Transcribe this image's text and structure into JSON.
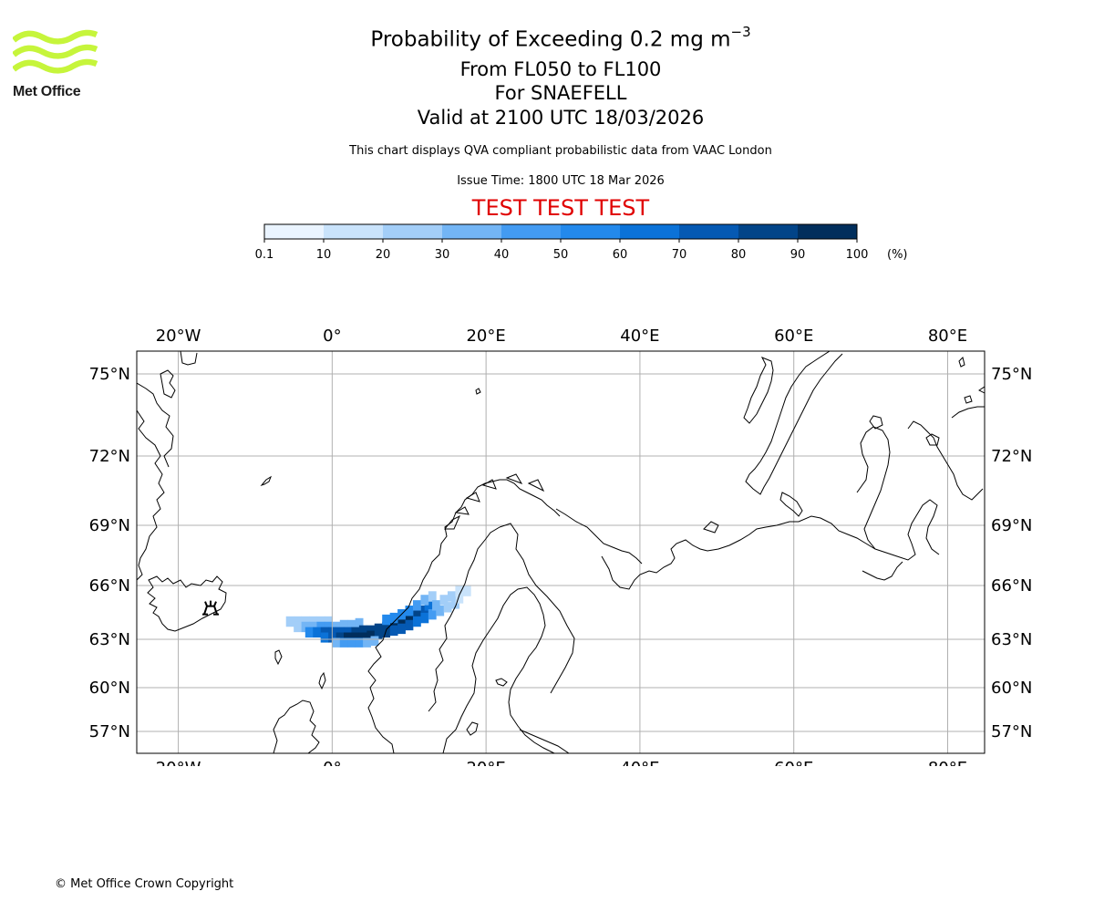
{
  "header": {
    "title_main": "Probability of Exceeding 0.2 mg m",
    "title_unit_exponent": "−3",
    "title_levels": "From FL050 to FL100",
    "title_volcano": "For SNAEFELL",
    "title_valid": "Valid at 2100 UTC 18/03/2026",
    "subtitle": "This chart displays QVA compliant probabilistic data from VAAC London",
    "issue_time": "Issue Time: 1800 UTC 18 Mar 2026",
    "test_banner": "TEST TEST TEST",
    "banner_color": "#e00000"
  },
  "logo": {
    "text": "Met Office",
    "color": "#c6f53b"
  },
  "colorbar": {
    "ticks": [
      "0.1",
      "10",
      "20",
      "30",
      "40",
      "50",
      "60",
      "70",
      "80",
      "90",
      "100"
    ],
    "unit": "(%)",
    "colors": [
      "#eaf4ff",
      "#c9e3fb",
      "#a3cef8",
      "#73b5f5",
      "#439bf2",
      "#2389ec",
      "#0b72d8",
      "#0559b3",
      "#024488",
      "#012e5c"
    ]
  },
  "map": {
    "lon_labels": [
      "20°W",
      "0°",
      "20°E",
      "40°E",
      "60°E",
      "80°E"
    ],
    "lon_values": [
      -20,
      0,
      20,
      40,
      60,
      80
    ],
    "lat_labels": [
      "75°N",
      "72°N",
      "69°N",
      "66°N",
      "63°N",
      "60°N",
      "57°N"
    ],
    "lat_values": [
      75,
      72,
      69,
      66,
      63,
      60,
      57
    ],
    "volcano": {
      "name": "SNAEFELL",
      "lon": -15.8,
      "lat": 64.8
    },
    "plume_cells": [
      [
        -5.5,
        64.0,
        2
      ],
      [
        -4.5,
        64.0,
        2
      ],
      [
        -3.5,
        64.0,
        2
      ],
      [
        -2.5,
        64.0,
        2
      ],
      [
        -1.5,
        64.0,
        2
      ],
      [
        -0.5,
        64.0,
        2
      ],
      [
        -4.5,
        63.7,
        2
      ],
      [
        -3.5,
        63.7,
        3
      ],
      [
        -2.5,
        63.7,
        3
      ],
      [
        -1.5,
        63.7,
        4
      ],
      [
        -0.5,
        63.7,
        4
      ],
      [
        0.5,
        63.7,
        3
      ],
      [
        1.5,
        63.8,
        3
      ],
      [
        2.5,
        63.8,
        3
      ],
      [
        3.5,
        63.9,
        3
      ],
      [
        -3.0,
        63.4,
        5
      ],
      [
        -2.0,
        63.4,
        6
      ],
      [
        -1.0,
        63.4,
        7
      ],
      [
        0.0,
        63.4,
        7
      ],
      [
        1.0,
        63.4,
        7
      ],
      [
        2.0,
        63.4,
        7
      ],
      [
        3.0,
        63.4,
        8
      ],
      [
        4.0,
        63.5,
        8
      ],
      [
        5.0,
        63.5,
        8
      ],
      [
        6.0,
        63.6,
        8
      ],
      [
        -1.0,
        63.1,
        6
      ],
      [
        0.0,
        63.1,
        7
      ],
      [
        1.0,
        63.1,
        8
      ],
      [
        2.0,
        63.1,
        9
      ],
      [
        3.0,
        63.1,
        9
      ],
      [
        4.0,
        63.1,
        9
      ],
      [
        5.0,
        63.2,
        9
      ],
      [
        6.0,
        63.3,
        8
      ],
      [
        7.0,
        63.4,
        8
      ],
      [
        0.5,
        62.8,
        3
      ],
      [
        1.5,
        62.8,
        4
      ],
      [
        2.5,
        62.8,
        4
      ],
      [
        3.5,
        62.8,
        4
      ],
      [
        4.5,
        62.8,
        3
      ],
      [
        5.5,
        62.9,
        3
      ],
      [
        7.0,
        63.7,
        8
      ],
      [
        8.0,
        63.8,
        9
      ],
      [
        9.0,
        64.0,
        9
      ],
      [
        10.0,
        64.2,
        9
      ],
      [
        11.0,
        64.4,
        8
      ],
      [
        12.0,
        64.6,
        7
      ],
      [
        12.5,
        64.9,
        6
      ],
      [
        7.0,
        64.1,
        5
      ],
      [
        8.0,
        64.2,
        5
      ],
      [
        9.0,
        64.4,
        5
      ],
      [
        10.0,
        64.6,
        5
      ],
      [
        11.0,
        64.9,
        4
      ],
      [
        12.0,
        65.2,
        3
      ],
      [
        13.0,
        65.4,
        2
      ],
      [
        8.0,
        63.5,
        7
      ],
      [
        9.0,
        63.6,
        7
      ],
      [
        10.0,
        63.8,
        7
      ],
      [
        11.0,
        64.0,
        6
      ],
      [
        12.0,
        64.2,
        6
      ],
      [
        13.0,
        64.4,
        4
      ],
      [
        14.0,
        64.6,
        3
      ],
      [
        15.0,
        64.8,
        2
      ],
      [
        16.0,
        65.0,
        2
      ],
      [
        16.5,
        65.3,
        1
      ],
      [
        13.5,
        64.9,
        3
      ],
      [
        14.5,
        65.2,
        2
      ],
      [
        15.5,
        65.4,
        2
      ],
      [
        16.5,
        65.7,
        1
      ],
      [
        17.5,
        65.7,
        1
      ]
    ]
  },
  "footer": {
    "copyright": "© Met Office Crown Copyright"
  }
}
